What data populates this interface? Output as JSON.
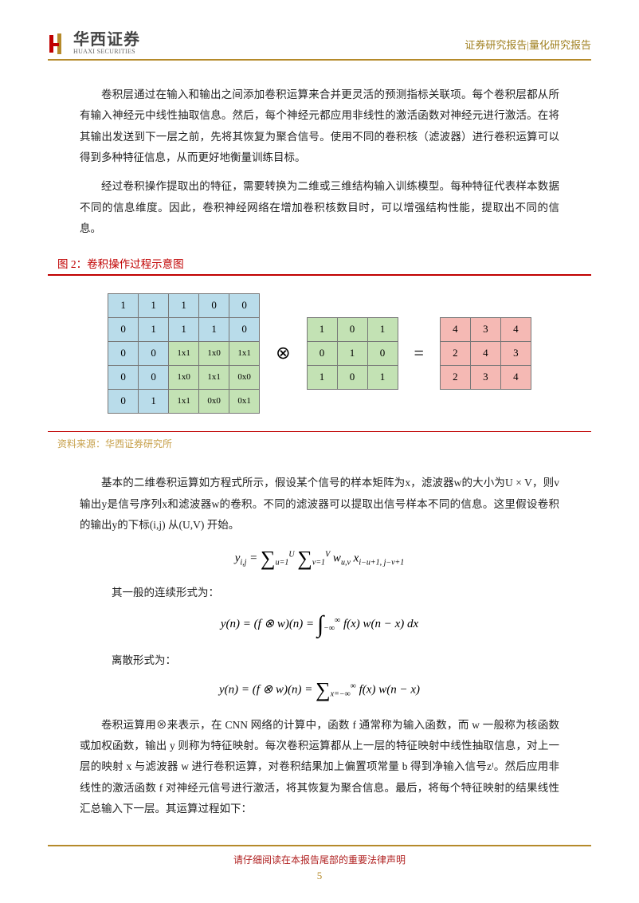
{
  "header": {
    "company_cn": "华西证券",
    "company_en": "HUAXI SECURITIES",
    "right_text": "证券研究报告|量化研究报告",
    "logo_colors": {
      "red": "#c00000",
      "gold": "#b58a2a"
    }
  },
  "paragraphs": {
    "p1": "卷积层通过在输入和输出之间添加卷积运算来合并更灵活的预测指标关联项。每个卷积层都从所有输入神经元中线性抽取信息。然后，每个神经元都应用非线性的激活函数对神经元进行激活。在将其输出发送到下一层之前，先将其恢复为聚合信号。使用不同的卷积核（滤波器）进行卷积运算可以得到多种特征信息，从而更好地衡量训练目标。",
    "p2": "经过卷积操作提取出的特征，需要转换为二维或三维结构输入训练模型。每种特征代表样本数据不同的信息维度。因此，卷积神经网络在增加卷积核数目时，可以增强结构性能，提取出不同的信息。",
    "p3": "基本的二维卷积运算如方程式所示，假设某个信号的样本矩阵为x，滤波器w的大小为U × V，则v输出y是信号序列x和滤波器w的卷积。不同的滤波器可以提取出信号样本不同的信息。这里假设卷积的输出y的下标(i,j) 从(U,V) 开始。",
    "p4": "卷积运算用⊗来表示，在 CNN 网络的计算中，函数 f 通常称为输入函数，而 w 一般称为核函数或加权函数，输出 y 则称为特征映射。每次卷积运算都从上一层的特征映射中线性抽取信息，对上一层的映射 x 与滤波器 w 进行卷积运算，对卷积结果加上偏置项常量 b 得到净输入信号zᴵ。然后应用非线性的激活函数 f 对神经元信号进行激活，将其恢复为聚合信息。最后，将每个特征映射的结果线性汇总输入下一层。其运算过程如下："
  },
  "figure": {
    "caption": "图 2：卷积操作过程示意图",
    "source": "资料来源：华西证券研究所",
    "input_matrix": [
      [
        "1",
        "1",
        "1",
        "0",
        "0"
      ],
      [
        "0",
        "1",
        "1",
        "1",
        "0"
      ],
      [
        "0",
        "0",
        "1x1",
        "1x0",
        "1x1"
      ],
      [
        "0",
        "0",
        "1x0",
        "1x1",
        "0x0"
      ],
      [
        "0",
        "1",
        "1x1",
        "0x0",
        "0x1"
      ]
    ],
    "overlay_start_row": 2,
    "overlay_start_col": 2,
    "kernel": [
      [
        "1",
        "0",
        "1"
      ],
      [
        "0",
        "1",
        "0"
      ],
      [
        "1",
        "0",
        "1"
      ]
    ],
    "output": [
      [
        "4",
        "3",
        "4"
      ],
      [
        "2",
        "4",
        "3"
      ],
      [
        "2",
        "3",
        "4"
      ]
    ],
    "op_conv": "⊗",
    "op_eq": "=",
    "colors": {
      "blue": "#b9dcea",
      "green": "#c3e2b4",
      "pink": "#f5b9b4",
      "border": "#777777"
    }
  },
  "labels": {
    "continuous": "其一般的连续形式为：",
    "discrete": "离散形式为："
  },
  "formulas": {
    "f1_html": "y<sub class='sub'>i,j</sub> = <span class='sum-sym'>&#8721;</span><sub class='sub'>u=1</sub><sup class='sub'>U</sup> <span class='sum-sym'>&#8721;</span><sub class='sub'>v=1</sub><sup class='sub'>V</sup> w<sub class='sub'>u,v</sub> x<sub class='sub'>i−u+1, j−v+1</sub>",
    "f2_html": "y(n) = (f ⊗ w)(n) = <span class='int-sym'>&#8747;</span><sub class='sub'>−∞</sub><sup class='sub'>∞</sup> f(x) w(n − x) dx",
    "f3_html": "y(n) = (f ⊗ w)(n) = <span class='sum-sym'>&#8721;</span><sub class='sub'>x=−∞</sub><sup class='sub'>∞</sup> f(x) w(n − x)"
  },
  "footer": {
    "disclaimer": "请仔细阅读在本报告尾部的重要法律声明",
    "page_number": "5"
  }
}
